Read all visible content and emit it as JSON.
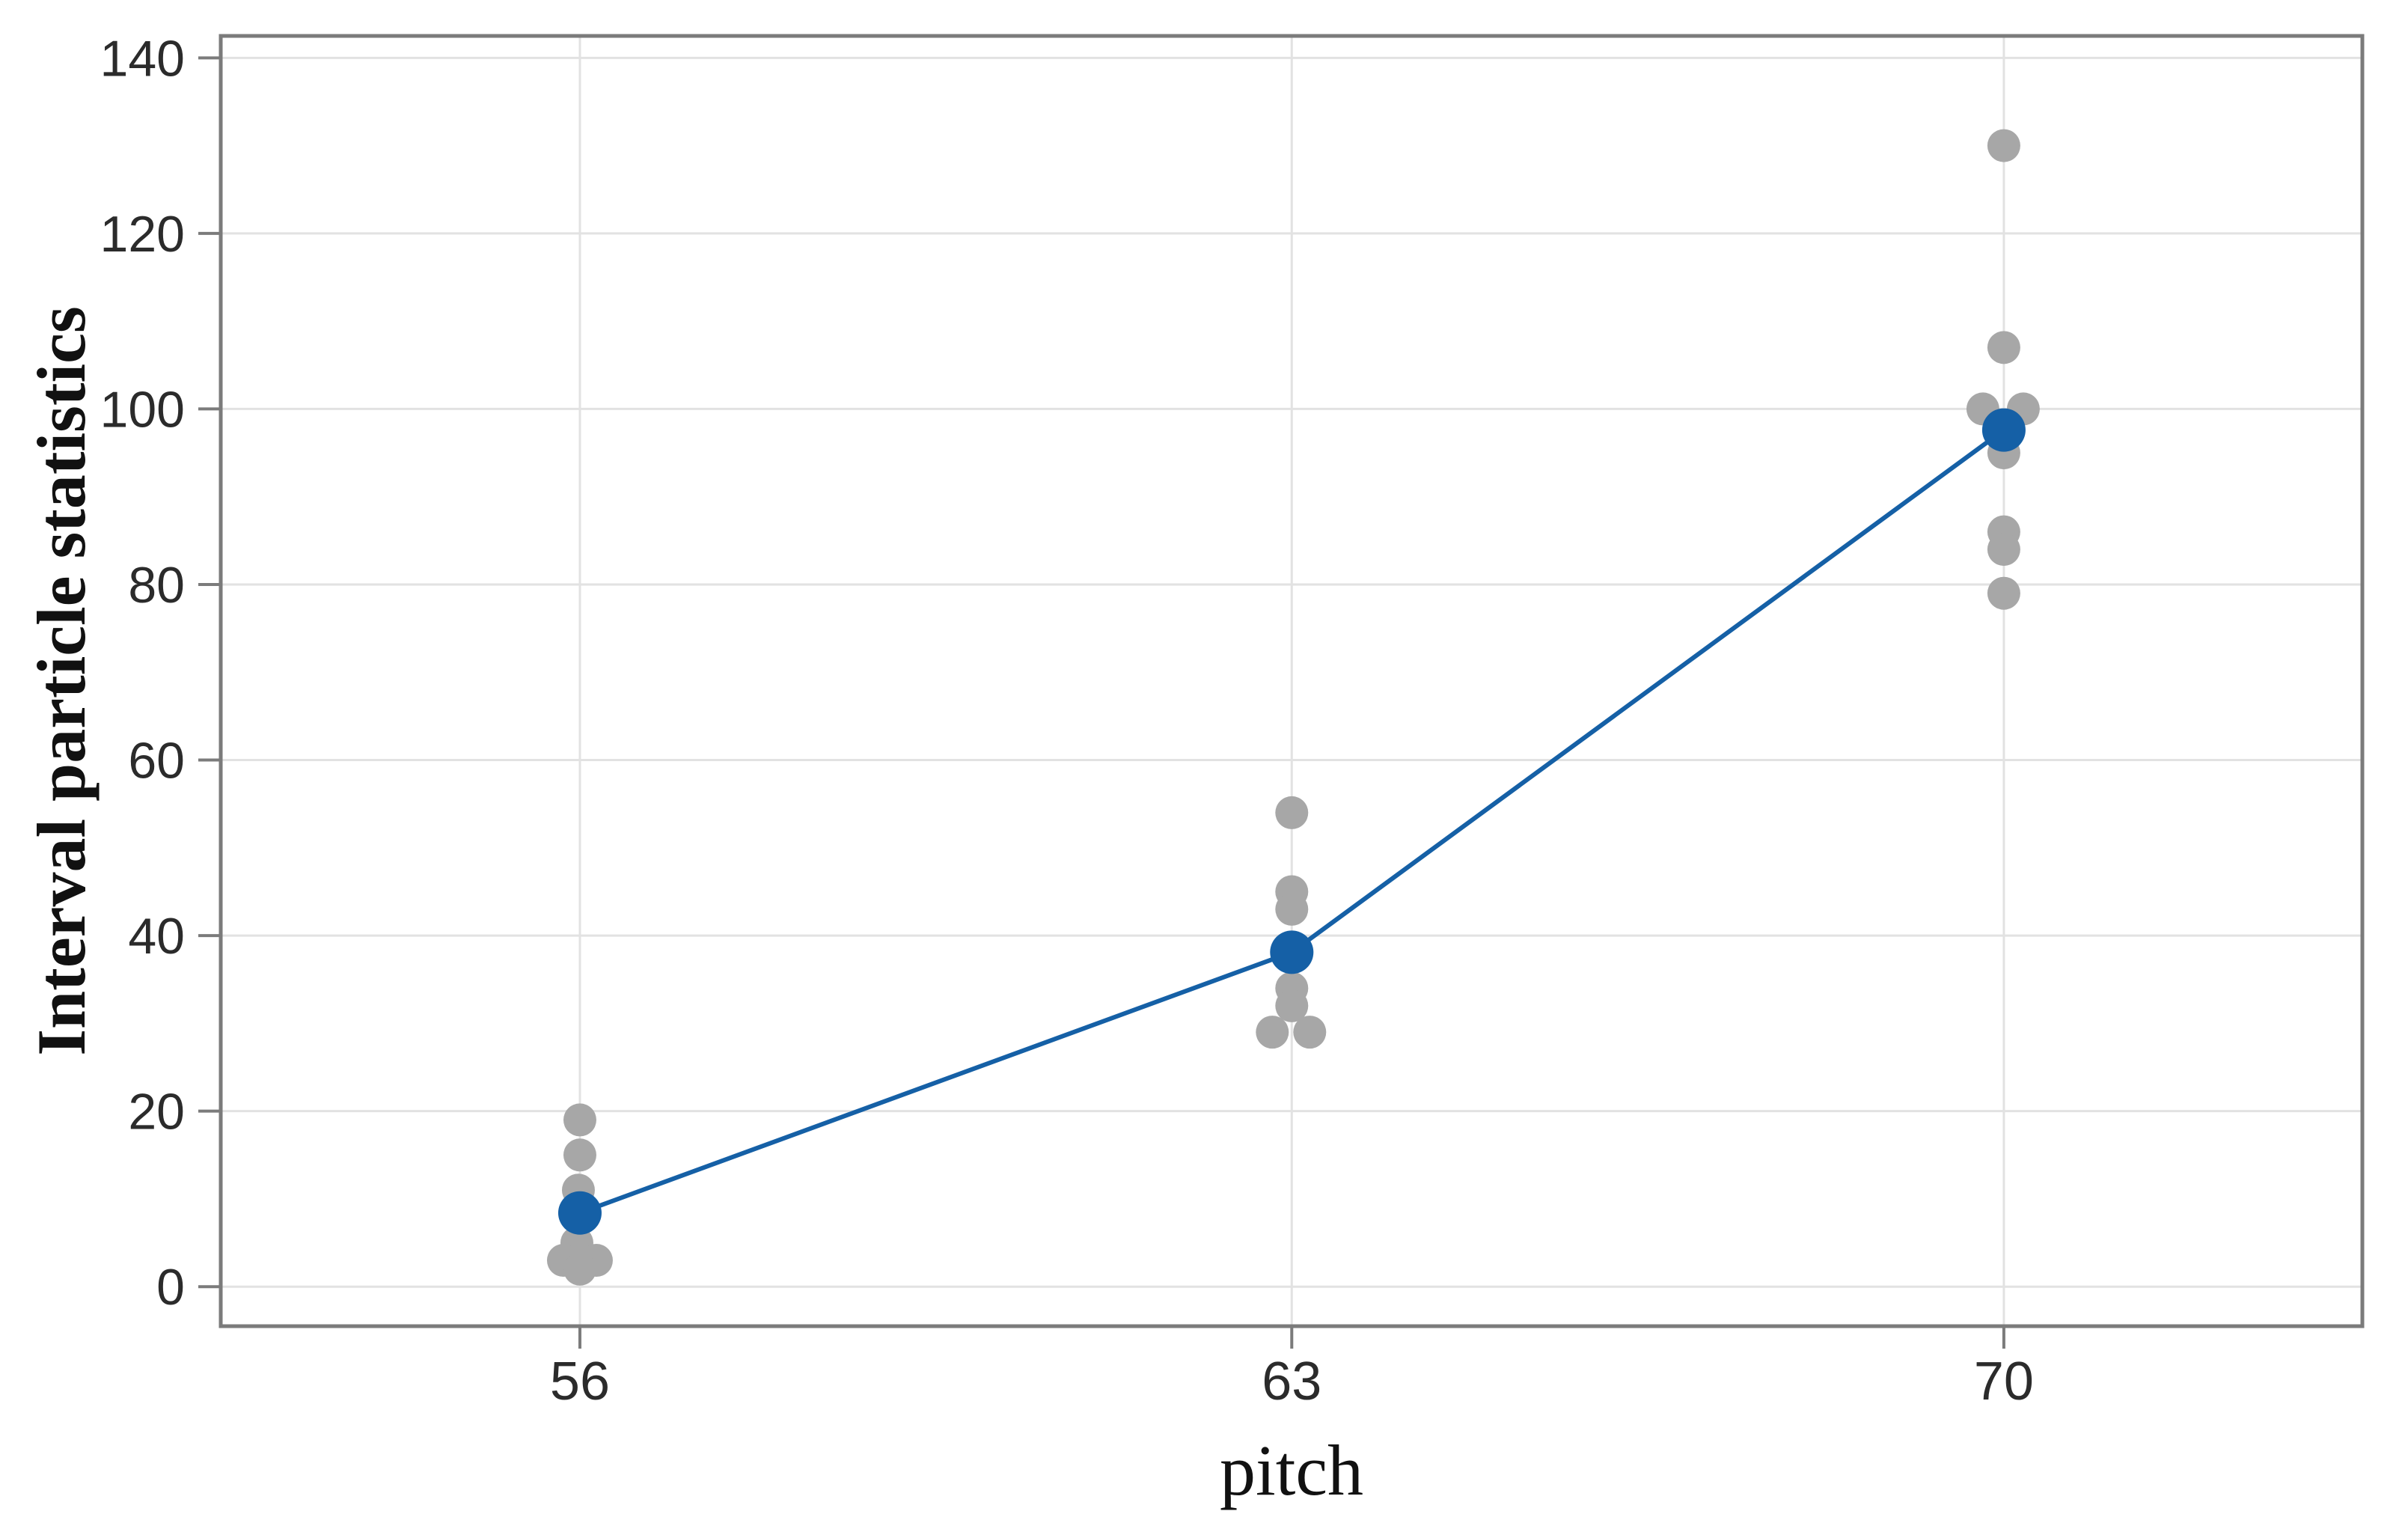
{
  "chart_data": {
    "type": "scatter",
    "title": "",
    "xlabel": "pitch",
    "ylabel": "Interval particle statistics",
    "x_categories": [
      "56",
      "63",
      "70"
    ],
    "y_ticks": [
      0,
      20,
      40,
      60,
      80,
      100,
      120,
      140
    ],
    "y_axis_range": [
      -4.5,
      142.5
    ],
    "grid": "both",
    "legend": "none",
    "description": "Individual value plot: gray raw data points per pitch group, blue group means connected by a line",
    "groups": [
      {
        "pitch": "56",
        "mean": 8.4,
        "points": [
          {
            "v": 19,
            "dx": 0
          },
          {
            "v": 15,
            "dx": 0
          },
          {
            "v": 11,
            "dx": -2
          },
          {
            "v": 9,
            "dx": 0
          },
          {
            "v": 5,
            "dx": -4
          },
          {
            "v": 3,
            "dx": -22
          },
          {
            "v": 3,
            "dx": 22
          },
          {
            "v": 2,
            "dx": 0
          }
        ]
      },
      {
        "pitch": "63",
        "mean": 38.1,
        "points": [
          {
            "v": 54,
            "dx": 0
          },
          {
            "v": 45,
            "dx": 0
          },
          {
            "v": 43,
            "dx": 0
          },
          {
            "v": 38,
            "dx": 0
          },
          {
            "v": 34,
            "dx": 0
          },
          {
            "v": 32,
            "dx": 0
          },
          {
            "v": 29,
            "dx": -26
          },
          {
            "v": 29,
            "dx": 24
          }
        ]
      },
      {
        "pitch": "70",
        "mean": 97.6,
        "points": [
          {
            "v": 130,
            "dx": 0
          },
          {
            "v": 107,
            "dx": 0
          },
          {
            "v": 100,
            "dx": -28
          },
          {
            "v": 100,
            "dx": 26
          },
          {
            "v": 95,
            "dx": 0
          },
          {
            "v": 86,
            "dx": 0
          },
          {
            "v": 84,
            "dx": 0
          },
          {
            "v": 79,
            "dx": 0
          }
        ]
      }
    ],
    "colors": {
      "raw_point": "#a7a7a7",
      "mean_point": "#1560a6",
      "mean_line": "#1560a6",
      "gridline": "#e2e2e2",
      "axis_frame": "#7b7b7b",
      "tick_label": "#2b2b2b",
      "axis_title": "#111111"
    }
  }
}
